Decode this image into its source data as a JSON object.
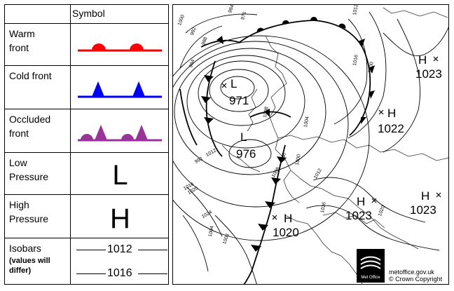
{
  "legend": {
    "header": "Symbol",
    "rows": [
      {
        "label_lines": [
          "Warm",
          "front"
        ],
        "symbol": "warm-front",
        "color": "#ff0000"
      },
      {
        "label_lines": [
          "Cold front"
        ],
        "symbol": "cold-front",
        "color": "#0000ff"
      },
      {
        "label_lines": [
          "Occluded",
          "front"
        ],
        "symbol": "occluded-front",
        "color": "#993399"
      },
      {
        "label_lines": [
          "Low",
          "Pressure"
        ],
        "symbol_text": "L"
      },
      {
        "label_lines": [
          "High",
          "Pressure"
        ],
        "symbol_text": "H"
      },
      {
        "label_lines": [
          "Isobars",
          "(values will",
          "differ)"
        ],
        "isobar_values": [
          "1012",
          "1016"
        ]
      }
    ]
  },
  "map": {
    "pressure_systems": [
      {
        "type": "L",
        "value": "971"
      },
      {
        "type": "L",
        "value": "976"
      },
      {
        "type": "H",
        "value": "1023"
      },
      {
        "type": "H",
        "value": "1022"
      },
      {
        "type": "H",
        "value": "1020"
      },
      {
        "type": "H",
        "value": "1023"
      },
      {
        "type": "H",
        "value": "1023"
      }
    ],
    "isobar_labels": [
      "984",
      "1000",
      "992",
      "988",
      "984",
      "976",
      "1012",
      "1016",
      "1008",
      "1004",
      "1000",
      "996",
      "992",
      "1012",
      "1016",
      "1020",
      "1024",
      "1004",
      "1008",
      "1012",
      "1016",
      "1020",
      "1008",
      "1000"
    ],
    "credit": {
      "site": "metoffice.gov.uk",
      "copyright": "© Crown Copyright",
      "logo_text": "Met Office"
    }
  },
  "colors": {
    "warm": "#ff0000",
    "cold": "#0000ff",
    "occluded": "#993399"
  }
}
